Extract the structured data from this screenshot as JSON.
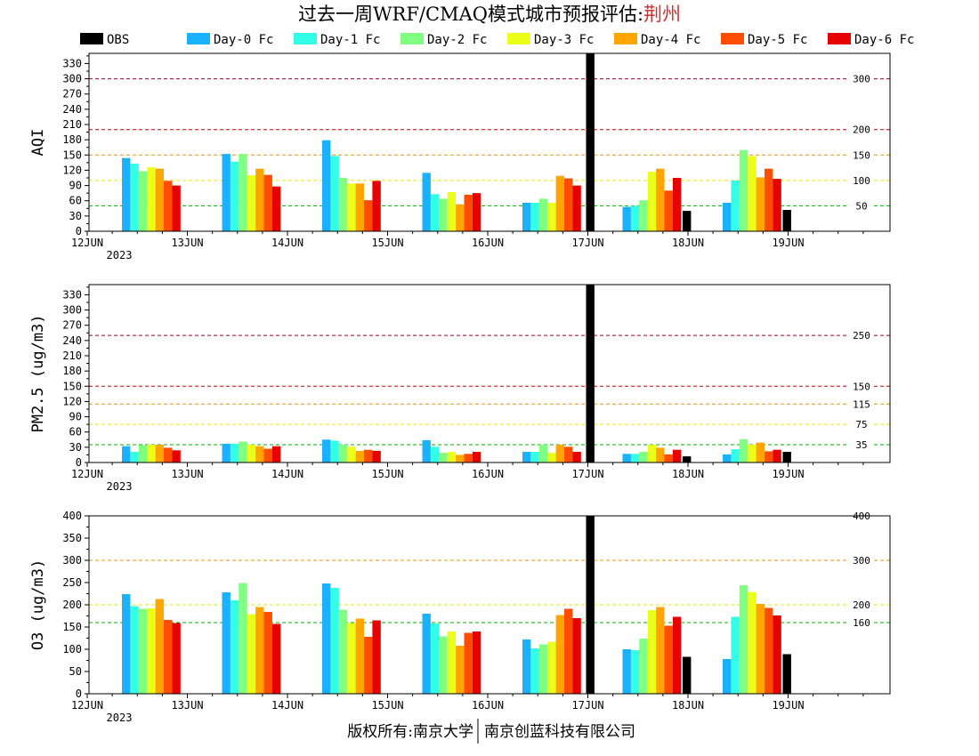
{
  "title": {
    "prefix": "过去一周WRF/CMAQ模式城市预报评估:",
    "city": "荆州",
    "city_color": "#cc3333"
  },
  "footer": {
    "left": "版权所有:南京大学",
    "right": "南京创蓝科技有限公司"
  },
  "legend": [
    {
      "name": "OBS",
      "color": "#000000"
    },
    {
      "name": "Day-0 Fc",
      "color": "#1ab2ff"
    },
    {
      "name": "Day-1 Fc",
      "color": "#33ffe6"
    },
    {
      "name": "Day-2 Fc",
      "color": "#80ff80"
    },
    {
      "name": "Day-3 Fc",
      "color": "#ecff1a"
    },
    {
      "name": "Day-4 Fc",
      "color": "#ffa500"
    },
    {
      "name": "Day-5 Fc",
      "color": "#ff4d00"
    },
    {
      "name": "Day-6 Fc",
      "color": "#e60000"
    }
  ],
  "x_labels": [
    "12JUN",
    "13JUN",
    "14JUN",
    "15JUN",
    "16JUN",
    "17JUN",
    "18JUN",
    "19JUN"
  ],
  "x_year": "2023",
  "chart_data": [
    {
      "type": "bar",
      "ylabel": "AQI",
      "ylim": [
        0,
        350
      ],
      "yticks": [
        0,
        30,
        60,
        90,
        120,
        150,
        180,
        210,
        240,
        270,
        300,
        330
      ],
      "reference_lines": [
        {
          "value": 50,
          "label": "50",
          "color": "#00b000"
        },
        {
          "value": 100,
          "label": "100",
          "color": "#e6e600"
        },
        {
          "value": 150,
          "label": "150",
          "color": "#e69500"
        },
        {
          "value": 200,
          "label": "200",
          "color": "#cc0000"
        },
        {
          "value": 300,
          "label": "300",
          "color": "#990033"
        }
      ],
      "categories": [
        "12JUN",
        "13JUN",
        "14JUN",
        "15JUN",
        "16JUN",
        "17JUN",
        "18JUN",
        "19JUN"
      ],
      "series": [
        {
          "name": "OBS",
          "values": [
            null,
            null,
            null,
            null,
            null,
            350,
            40,
            42
          ]
        },
        {
          "name": "Day-0 Fc",
          "values": [
            144,
            152,
            179,
            115,
            56,
            48,
            56,
            null
          ]
        },
        {
          "name": "Day-1 Fc",
          "values": [
            133,
            137,
            148,
            73,
            56,
            50,
            100,
            null
          ]
        },
        {
          "name": "Day-2 Fc",
          "values": [
            118,
            152,
            105,
            64,
            64,
            61,
            160,
            null
          ]
        },
        {
          "name": "Day-3 Fc",
          "values": [
            126,
            110,
            94,
            77,
            56,
            117,
            148,
            null
          ]
        },
        {
          "name": "Day-4 Fc",
          "values": [
            123,
            123,
            94,
            53,
            109,
            123,
            106,
            null
          ]
        },
        {
          "name": "Day-5 Fc",
          "values": [
            99,
            111,
            61,
            72,
            104,
            80,
            123,
            null
          ]
        },
        {
          "name": "Day-6 Fc",
          "values": [
            90,
            88,
            99,
            75,
            90,
            105,
            103,
            null
          ]
        }
      ]
    },
    {
      "type": "bar",
      "ylabel": "PM2.5 (ug/m3)",
      "ylim": [
        0,
        350
      ],
      "yticks": [
        0,
        30,
        60,
        90,
        120,
        150,
        180,
        210,
        240,
        270,
        300,
        330
      ],
      "reference_lines": [
        {
          "value": 35,
          "label": "35",
          "color": "#00b000"
        },
        {
          "value": 75,
          "label": "75",
          "color": "#e6e600"
        },
        {
          "value": 115,
          "label": "115",
          "color": "#e69500"
        },
        {
          "value": 150,
          "label": "150",
          "color": "#cc0000"
        },
        {
          "value": 250,
          "label": "250",
          "color": "#990033"
        }
      ],
      "categories": [
        "12JUN",
        "13JUN",
        "14JUN",
        "15JUN",
        "16JUN",
        "17JUN",
        "18JUN",
        "19JUN"
      ],
      "series": [
        {
          "name": "OBS",
          "values": [
            null,
            null,
            null,
            null,
            null,
            350,
            12,
            21
          ]
        },
        {
          "name": "Day-0 Fc",
          "values": [
            32,
            37,
            45,
            44,
            21,
            17,
            16,
            null
          ]
        },
        {
          "name": "Day-1 Fc",
          "values": [
            21,
            37,
            43,
            31,
            21,
            17,
            26,
            null
          ]
        },
        {
          "name": "Day-2 Fc",
          "values": [
            34,
            41,
            35,
            19,
            35,
            21,
            46,
            null
          ]
        },
        {
          "name": "Day-3 Fc",
          "values": [
            35,
            35,
            31,
            21,
            19,
            35,
            35,
            null
          ]
        },
        {
          "name": "Day-4 Fc",
          "values": [
            35,
            32,
            23,
            15,
            35,
            29,
            39,
            null
          ]
        },
        {
          "name": "Day-5 Fc",
          "values": [
            29,
            27,
            25,
            17,
            31,
            16,
            22,
            null
          ]
        },
        {
          "name": "Day-6 Fc",
          "values": [
            24,
            32,
            23,
            21,
            21,
            25,
            25,
            null
          ]
        }
      ]
    },
    {
      "type": "bar",
      "ylabel": "O3 (ug/m3)",
      "ylim": [
        0,
        400
      ],
      "yticks": [
        0,
        50,
        100,
        150,
        200,
        250,
        300,
        350,
        400
      ],
      "reference_lines": [
        {
          "value": 160,
          "label": "160",
          "color": "#00b000"
        },
        {
          "value": 200,
          "label": "200",
          "color": "#e6e600"
        },
        {
          "value": 300,
          "label": "300",
          "color": "#e69500"
        },
        {
          "value": 400,
          "label": "400",
          "color": "#cc0000"
        }
      ],
      "categories": [
        "12JUN",
        "13JUN",
        "14JUN",
        "15JUN",
        "16JUN",
        "17JUN",
        "18JUN",
        "19JUN"
      ],
      "series": [
        {
          "name": "OBS",
          "values": [
            null,
            null,
            null,
            null,
            null,
            400,
            83,
            89
          ]
        },
        {
          "name": "Day-0 Fc",
          "values": [
            224,
            228,
            248,
            180,
            122,
            100,
            78,
            null
          ]
        },
        {
          "name": "Day-1 Fc",
          "values": [
            197,
            210,
            238,
            158,
            102,
            98,
            173,
            null
          ]
        },
        {
          "name": "Day-2 Fc",
          "values": [
            191,
            249,
            189,
            129,
            111,
            124,
            244,
            null
          ]
        },
        {
          "name": "Day-3 Fc",
          "values": [
            192,
            179,
            159,
            140,
            117,
            188,
            229,
            null
          ]
        },
        {
          "name": "Day-4 Fc",
          "values": [
            213,
            195,
            169,
            108,
            177,
            195,
            202,
            null
          ]
        },
        {
          "name": "Day-5 Fc",
          "values": [
            166,
            184,
            128,
            137,
            191,
            153,
            193,
            null
          ]
        },
        {
          "name": "Day-6 Fc",
          "values": [
            159,
            157,
            165,
            140,
            170,
            173,
            176,
            null
          ]
        }
      ]
    }
  ]
}
